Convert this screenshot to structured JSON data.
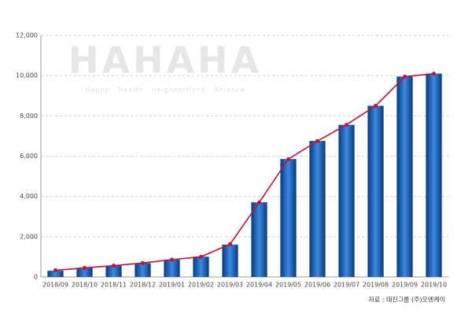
{
  "chart_data": {
    "type": "bar",
    "watermark": "HAHAHA",
    "watermark_subtitle": "Happy · Health · neighborHood · Alliance",
    "source": "자료 : 태진그룹 (주)오엔케이",
    "categories": [
      "2018/09",
      "2018/10",
      "2018/11",
      "2018/12",
      "2019/01",
      "2019/02",
      "2019/03",
      "2019/04",
      "2019/05",
      "2019/06",
      "2019/07",
      "2019/08",
      "2019/09",
      "2019/10"
    ],
    "series": [
      {
        "type": "bar",
        "color": "#1a5fb0",
        "values": [
          300,
          450,
          550,
          680,
          850,
          1000,
          1600,
          3700,
          5850,
          6750,
          7550,
          8500,
          9950,
          10100
        ]
      },
      {
        "type": "line",
        "color": "#c8102e",
        "values": [
          330,
          450,
          560,
          690,
          860,
          1000,
          1630,
          3700,
          5850,
          6750,
          7560,
          8500,
          9950,
          10100
        ]
      }
    ],
    "ylim": [
      0,
      12000
    ],
    "yticks": [
      0,
      {
        "value": 2000,
        "label": "2,000"
      },
      {
        "value": 4000,
        "label": "4,000"
      },
      {
        "value": 6000,
        "label": "6,000"
      },
      {
        "value": 8000,
        "label": "8,000"
      },
      {
        "value": 10000,
        "label": "10,000"
      },
      {
        "value": 12000,
        "label": "12,000"
      }
    ],
    "grid": true
  }
}
